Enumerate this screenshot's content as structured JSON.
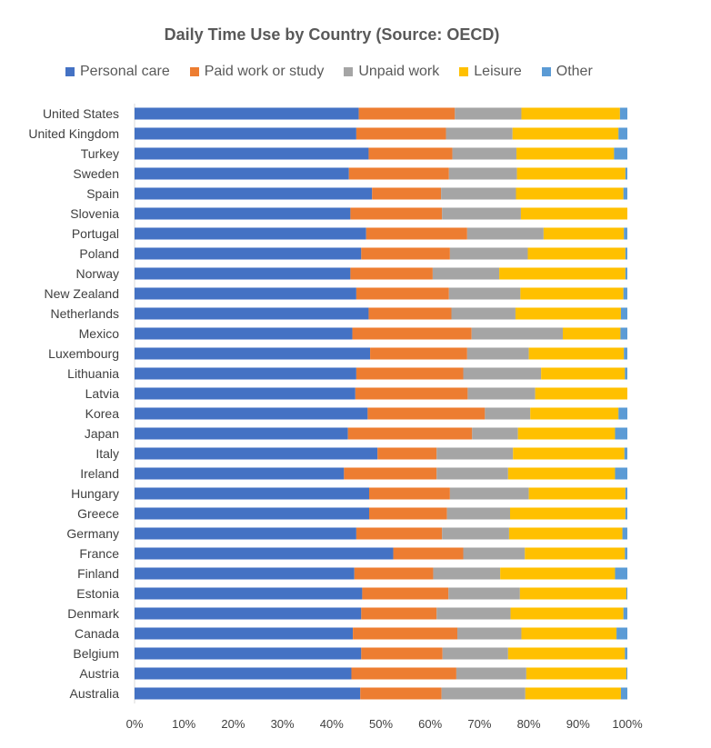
{
  "chart_data": {
    "type": "bar",
    "orientation": "horizontal",
    "stacked": "percent",
    "title": "Daily Time Use by Country (Source: OECD)",
    "xlabel": "",
    "ylabel": "",
    "xlim": [
      0,
      100
    ],
    "x_ticks": [
      "0%",
      "10%",
      "20%",
      "30%",
      "40%",
      "50%",
      "60%",
      "70%",
      "80%",
      "90%",
      "100%"
    ],
    "legend_position": "top",
    "grid": false,
    "categories": [
      "United States",
      "United Kingdom",
      "Turkey",
      "Sweden",
      "Spain",
      "Slovenia",
      "Portugal",
      "Poland",
      "Norway",
      "New Zealand",
      "Netherlands",
      "Mexico",
      "Luxembourg",
      "Lithuania",
      "Latvia",
      "Korea",
      "Japan",
      "Italy",
      "Ireland",
      "Hungary",
      "Greece",
      "Germany",
      "France",
      "Finland",
      "Estonia",
      "Denmark",
      "Canada",
      "Belgium",
      "Austria",
      "Australia"
    ],
    "series": [
      {
        "name": "Personal care",
        "color": "#4472C4",
        "values": [
          45.5,
          45.0,
          47.5,
          43.5,
          48.2,
          43.8,
          47.0,
          46.0,
          43.8,
          45.0,
          47.5,
          44.2,
          47.8,
          45.0,
          44.8,
          47.3,
          43.3,
          49.3,
          42.5,
          47.6,
          47.6,
          45.0,
          52.5,
          44.6,
          46.2,
          46.0,
          44.3,
          46.0,
          44.0,
          45.8
        ]
      },
      {
        "name": "Paid work or study",
        "color": "#ED7D31",
        "values": [
          19.5,
          18.2,
          17.0,
          20.3,
          14.0,
          18.6,
          20.5,
          18.0,
          16.7,
          18.8,
          16.8,
          24.2,
          19.7,
          21.7,
          22.8,
          23.8,
          25.2,
          12.0,
          18.8,
          16.4,
          15.8,
          17.4,
          14.2,
          16.0,
          17.5,
          15.3,
          21.2,
          16.5,
          21.3,
          16.5
        ]
      },
      {
        "name": "Unpaid work",
        "color": "#A5A5A5",
        "values": [
          13.5,
          13.5,
          13.0,
          13.8,
          15.2,
          16.0,
          15.5,
          15.8,
          13.5,
          14.5,
          13.0,
          18.5,
          12.5,
          15.8,
          13.7,
          9.2,
          9.3,
          15.5,
          14.5,
          16.0,
          12.8,
          13.6,
          12.5,
          13.6,
          14.5,
          15.0,
          13.0,
          13.3,
          14.2,
          17.0
        ]
      },
      {
        "name": "Leisure",
        "color": "#FFC000",
        "values": [
          20.0,
          21.5,
          19.8,
          22.0,
          21.8,
          21.6,
          16.3,
          19.8,
          25.6,
          20.9,
          21.4,
          11.7,
          19.3,
          17.0,
          18.7,
          17.9,
          19.7,
          22.6,
          21.7,
          19.6,
          23.4,
          23.0,
          20.3,
          23.3,
          21.6,
          22.9,
          19.3,
          23.7,
          20.3,
          19.4
        ]
      },
      {
        "name": "Other",
        "color": "#5B9BD5",
        "values": [
          1.5,
          1.8,
          2.7,
          0.4,
          0.8,
          0.0,
          0.7,
          0.4,
          0.4,
          0.8,
          1.3,
          1.4,
          0.7,
          0.5,
          0.0,
          1.8,
          2.5,
          0.6,
          2.5,
          0.4,
          0.4,
          1.0,
          0.5,
          2.5,
          0.2,
          0.8,
          2.2,
          0.5,
          0.2,
          1.3
        ]
      }
    ]
  }
}
